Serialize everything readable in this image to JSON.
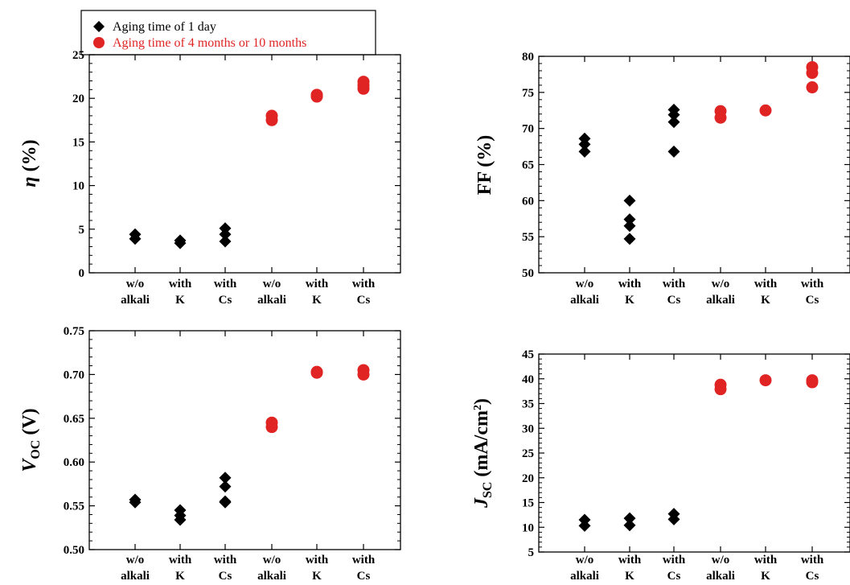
{
  "colors": {
    "series_1day": "#000000",
    "series_long": "#e02424",
    "axis": "#000000"
  },
  "legend": {
    "entries": [
      {
        "label": "Aging time of 1 day",
        "marker": "diamond",
        "color": "#000000"
      },
      {
        "label": "Aging time of 4 months or 10 months",
        "marker": "circle",
        "color": "#e02424"
      }
    ]
  },
  "chart_data": [
    {
      "type": "scatter",
      "ylabel": "η (%)",
      "ylim": [
        0,
        25
      ],
      "yticks": [
        "0",
        "5",
        "10",
        "15",
        "20",
        "25"
      ],
      "categories": [
        [
          "w/o",
          "alkali"
        ],
        [
          "with",
          "K"
        ],
        [
          "with",
          "Cs"
        ],
        [
          "w/o",
          "alkali"
        ],
        [
          "with",
          "K"
        ],
        [
          "with",
          "Cs"
        ]
      ],
      "series": [
        {
          "name": "Aging time of 1 day",
          "marker": "diamond",
          "points": [
            [
              1,
              4.4
            ],
            [
              1,
              3.9
            ],
            [
              2,
              3.7
            ],
            [
              2,
              3.4
            ],
            [
              3,
              5.1
            ],
            [
              3,
              4.4
            ],
            [
              3,
              3.6
            ]
          ]
        },
        {
          "name": "Aging time of 4 months or 10 months",
          "marker": "circle",
          "points": [
            [
              4,
              18.0
            ],
            [
              4,
              17.5
            ],
            [
              5,
              20.4
            ],
            [
              5,
              20.2
            ],
            [
              6,
              21.9
            ],
            [
              6,
              21.5
            ],
            [
              6,
              21.1
            ]
          ]
        }
      ]
    },
    {
      "type": "scatter",
      "ylabel": "FF (%)",
      "ylim": [
        50,
        80
      ],
      "yticks": [
        "50",
        "55",
        "60",
        "65",
        "70",
        "75",
        "80"
      ],
      "categories": [
        [
          "w/o",
          "alkali"
        ],
        [
          "with",
          "K"
        ],
        [
          "with",
          "Cs"
        ],
        [
          "w/o",
          "alkali"
        ],
        [
          "with",
          "K"
        ],
        [
          "with",
          "Cs"
        ]
      ],
      "series": [
        {
          "name": "Aging time of 1 day",
          "marker": "diamond",
          "points": [
            [
              1,
              68.6
            ],
            [
              1,
              67.8
            ],
            [
              1,
              66.8
            ],
            [
              2,
              60.0
            ],
            [
              2,
              57.4
            ],
            [
              2,
              56.5
            ],
            [
              2,
              54.7
            ],
            [
              3,
              72.6
            ],
            [
              3,
              71.9
            ],
            [
              3,
              70.9
            ],
            [
              3,
              66.8
            ]
          ]
        },
        {
          "name": "Aging time of 4 months or 10 months",
          "marker": "circle",
          "points": [
            [
              4,
              72.4
            ],
            [
              4,
              71.5
            ],
            [
              5,
              72.5
            ],
            [
              6,
              78.5
            ],
            [
              6,
              77.7
            ],
            [
              6,
              75.7
            ]
          ]
        }
      ]
    },
    {
      "type": "scatter",
      "ylabel": "VOC (V)",
      "ylim": [
        0.5,
        0.75
      ],
      "yticks": [
        "0.50",
        "0.55",
        "0.60",
        "0.65",
        "0.70",
        "0.75"
      ],
      "categories": [
        [
          "w/o",
          "alkali"
        ],
        [
          "with",
          "K"
        ],
        [
          "with",
          "Cs"
        ],
        [
          "w/o",
          "alkali"
        ],
        [
          "with",
          "K"
        ],
        [
          "with",
          "Cs"
        ]
      ],
      "series": [
        {
          "name": "Aging time of 1 day",
          "marker": "diamond",
          "points": [
            [
              1,
              0.557
            ],
            [
              1,
              0.554
            ],
            [
              2,
              0.545
            ],
            [
              2,
              0.539
            ],
            [
              2,
              0.534
            ],
            [
              3,
              0.582
            ],
            [
              3,
              0.572
            ],
            [
              3,
              0.555
            ],
            [
              3,
              0.554
            ]
          ]
        },
        {
          "name": "Aging time of 4 months or 10 months",
          "marker": "circle",
          "points": [
            [
              4,
              0.645
            ],
            [
              4,
              0.64
            ],
            [
              5,
              0.703
            ],
            [
              5,
              0.702
            ],
            [
              6,
              0.705
            ],
            [
              6,
              0.7
            ]
          ]
        }
      ]
    },
    {
      "type": "scatter",
      "ylabel": "JSC (mA/cm2)",
      "ylim": [
        5,
        45
      ],
      "yticks": [
        "5",
        "10",
        "15",
        "20",
        "25",
        "30",
        "35",
        "40",
        "45"
      ],
      "categories": [
        [
          "w/o",
          "alkali"
        ],
        [
          "with",
          "K"
        ],
        [
          "with",
          "Cs"
        ],
        [
          "w/o",
          "alkali"
        ],
        [
          "with",
          "K"
        ],
        [
          "with",
          "Cs"
        ]
      ],
      "series": [
        {
          "name": "Aging time of 1 day",
          "marker": "diamond",
          "points": [
            [
              1,
              11.5
            ],
            [
              1,
              10.3
            ],
            [
              2,
              11.8
            ],
            [
              2,
              10.4
            ],
            [
              3,
              12.7
            ],
            [
              3,
              11.6
            ]
          ]
        },
        {
          "name": "Aging time of 4 months or 10 months",
          "marker": "circle",
          "points": [
            [
              4,
              38.8
            ],
            [
              4,
              37.9
            ],
            [
              5,
              39.7
            ],
            [
              6,
              39.7
            ],
            [
              6,
              39.3
            ]
          ]
        }
      ]
    }
  ]
}
